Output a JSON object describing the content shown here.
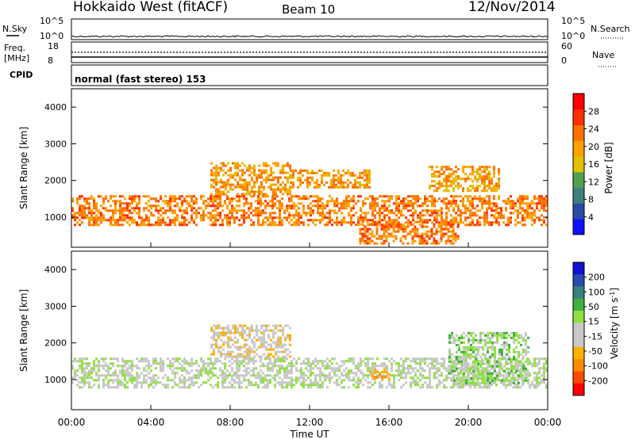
{
  "header": {
    "station": "Hokkaido West (fitACF)",
    "beam": "Beam 10",
    "date": "12/Nov/2014"
  },
  "top_panels": {
    "nsky": {
      "label": "N.Sky",
      "ticks": [
        "10^5",
        "10^0"
      ]
    },
    "nsearch": {
      "label": "N.Search",
      "ticks": [
        "10^5",
        "10^0"
      ]
    },
    "freq": {
      "label_line1": "Freq.",
      "label_line2": "[MHz]",
      "ticks": [
        "18",
        "8"
      ]
    },
    "nave": {
      "label": "Nave",
      "ticks": [
        "60",
        "0"
      ]
    },
    "cpid": {
      "label": "CPID",
      "value": "normal (fast stereo) 153"
    }
  },
  "colors": {
    "power_scale": [
      "#1010ff",
      "#2a4aa8",
      "#3f7f7f",
      "#50a050",
      "#e0c000",
      "#ffa000",
      "#ff7000",
      "#ff3000",
      "#ff0000"
    ],
    "velocity_scale": [
      "#ff0000",
      "#ff4a00",
      "#ff8c00",
      "#ffb000",
      "#c8c8c8",
      "#c8c8c8",
      "#90e040",
      "#40b040",
      "#3a7f7f",
      "#2a4ab0",
      "#1010d0"
    ]
  },
  "chart_data": [
    {
      "type": "heatmap",
      "name": "power-panel",
      "ylabel": "Slant Range [km]",
      "xlabel": "",
      "xlim": [
        0,
        24
      ],
      "ylim": [
        180,
        4500
      ],
      "yticks": [
        "1000",
        "2000",
        "3000",
        "4000"
      ],
      "colorbar": {
        "label": "Power [dB]",
        "range": [
          0,
          32
        ],
        "ticks": [
          "4",
          "8",
          "12",
          "16",
          "20",
          "24",
          "28"
        ]
      },
      "bands": [
        {
          "x": [
            0,
            24
          ],
          "range": [
            800,
            1600
          ],
          "level": 28
        },
        {
          "x": [
            7,
            11
          ],
          "range": [
            1600,
            2500
          ],
          "level": 26
        },
        {
          "x": [
            11,
            15
          ],
          "range": [
            1800,
            2300
          ],
          "level": 26
        },
        {
          "x": [
            14.5,
            19.5
          ],
          "range": [
            300,
            900
          ],
          "level": 28
        },
        {
          "x": [
            18,
            21.5
          ],
          "range": [
            1700,
            2400
          ],
          "level": 25
        }
      ]
    },
    {
      "type": "heatmap",
      "name": "velocity-panel",
      "ylabel": "Slant Range [km]",
      "xlabel": "Time UT",
      "xlim": [
        0,
        24
      ],
      "ylim": [
        180,
        4500
      ],
      "xticks": [
        "00:00",
        "04:00",
        "08:00",
        "12:00",
        "16:00",
        "20:00",
        "00:00"
      ],
      "yticks": [
        "1000",
        "2000",
        "3000",
        "4000"
      ],
      "colorbar": {
        "label": "Velocity [m s^-1]",
        "ticks": [
          "200",
          "100",
          "50",
          "15",
          "-15",
          "-50",
          "-100",
          "-200"
        ]
      },
      "bands": [
        {
          "x": [
            0,
            24
          ],
          "range": [
            800,
            1600
          ],
          "velocity": 0
        },
        {
          "x": [
            7,
            11
          ],
          "range": [
            1600,
            2500
          ],
          "velocity": -40
        },
        {
          "x": [
            15,
            16
          ],
          "range": [
            1000,
            1300
          ],
          "velocity": -80
        },
        {
          "x": [
            19,
            23
          ],
          "range": [
            900,
            2300
          ],
          "velocity": 30
        }
      ]
    }
  ]
}
